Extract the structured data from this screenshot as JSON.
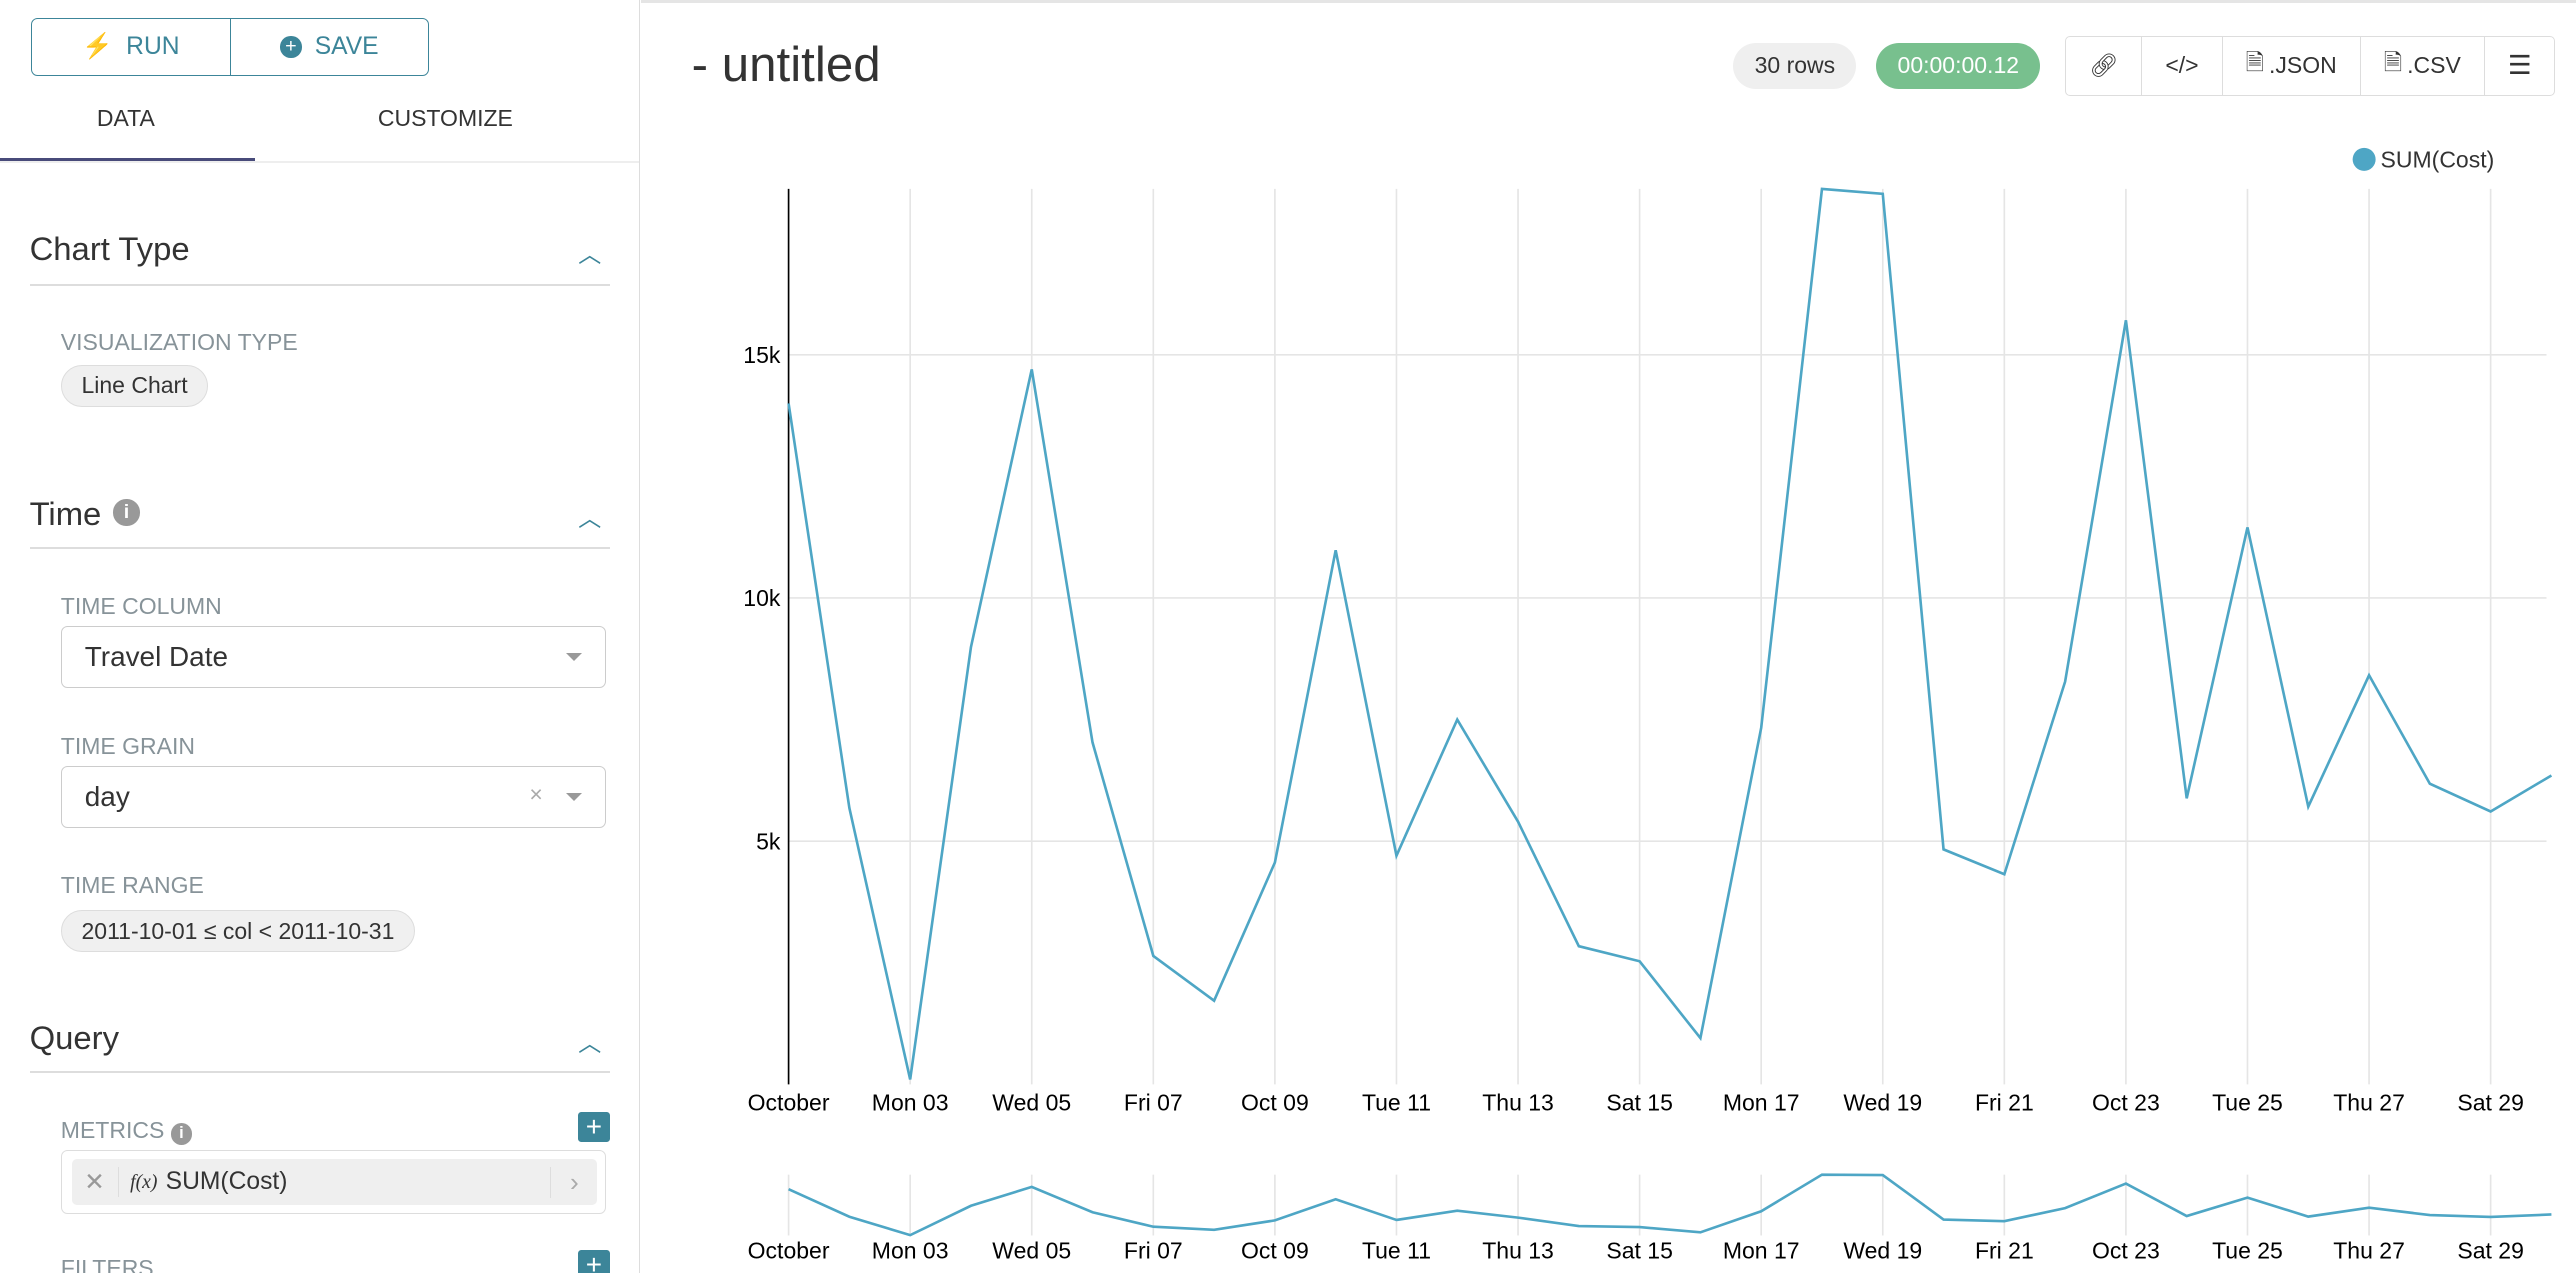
{
  "toolbar": {
    "run_label": "RUN",
    "save_label": "SAVE"
  },
  "tabs": [
    {
      "label": "DATA",
      "active": true
    },
    {
      "label": "CUSTOMIZE",
      "active": false
    }
  ],
  "sections": {
    "chart_type": {
      "title": "Chart Type",
      "viz_label": "VISUALIZATION TYPE",
      "viz_value": "Line Chart"
    },
    "time": {
      "title": "Time",
      "time_column_label": "TIME COLUMN",
      "time_column": "Travel Date",
      "time_grain_label": "TIME GRAIN",
      "time_grain": "day",
      "time_range_label": "TIME RANGE",
      "time_range": "2011-10-01 ≤ col < 2011-10-31"
    },
    "query": {
      "title": "Query",
      "metrics_label": "METRICS",
      "metric": "SUM(Cost)",
      "metric_fx": "f(x)",
      "filters_label": "FILTERS"
    }
  },
  "header": {
    "title": "- untitled",
    "rows": "30 rows",
    "duration": "00:00:00.12",
    "json_label": ".JSON",
    "csv_label": ".CSV"
  },
  "colors": {
    "accent": "#3c8599",
    "line": "#4ea6c5",
    "duration_bg": "#78c08e"
  },
  "chart_data": {
    "type": "line",
    "legend": "top-right",
    "series": [
      {
        "name": "SUM(Cost)",
        "values": [
          14000,
          5680,
          100,
          8990,
          14700,
          7030,
          2640,
          1720,
          4560,
          10980,
          4700,
          7500,
          5400,
          2840,
          2530,
          950,
          7330,
          18410,
          18310,
          4830,
          4320,
          8280,
          15710,
          5880,
          11450,
          5710,
          8410,
          6180,
          5610,
          6350
        ]
      }
    ],
    "x": [
      "2011-10-01",
      "2011-10-02",
      "2011-10-03",
      "2011-10-04",
      "2011-10-05",
      "2011-10-06",
      "2011-10-07",
      "2011-10-08",
      "2011-10-09",
      "2011-10-10",
      "2011-10-11",
      "2011-10-12",
      "2011-10-13",
      "2011-10-14",
      "2011-10-15",
      "2011-10-16",
      "2011-10-17",
      "2011-10-18",
      "2011-10-19",
      "2011-10-20",
      "2011-10-21",
      "2011-10-22",
      "2011-10-23",
      "2011-10-24",
      "2011-10-25",
      "2011-10-26",
      "2011-10-27",
      "2011-10-28",
      "2011-10-29",
      "2011-10-30"
    ],
    "xtick_labels": [
      "October",
      "Mon 03",
      "Wed 05",
      "Fri 07",
      "Oct 09",
      "Tue 11",
      "Thu 13",
      "Sat 15",
      "Mon 17",
      "Wed 19",
      "Fri 21",
      "Oct 23",
      "Tue 25",
      "Thu 27",
      "Sat 29"
    ],
    "yticks": [
      {
        "value": 5000,
        "label": "5k"
      },
      {
        "value": 10000,
        "label": "10k"
      },
      {
        "value": 15000,
        "label": "15k"
      }
    ],
    "ylim": [
      0,
      18410
    ],
    "grid": true,
    "brush": true
  }
}
